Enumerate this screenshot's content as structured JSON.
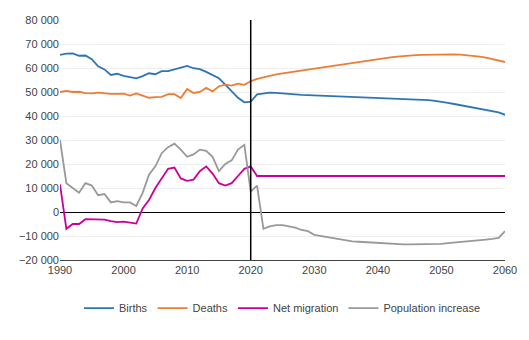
{
  "chart_data": {
    "type": "line",
    "x": [
      1990,
      1991,
      1992,
      1993,
      1994,
      1995,
      1996,
      1997,
      1998,
      1999,
      2000,
      2001,
      2002,
      2003,
      2004,
      2005,
      2006,
      2007,
      2008,
      2009,
      2010,
      2011,
      2012,
      2013,
      2014,
      2015,
      2016,
      2017,
      2018,
      2019,
      2020,
      2021,
      2022,
      2023,
      2024,
      2025,
      2026,
      2027,
      2028,
      2029,
      2030,
      2031,
      2032,
      2033,
      2034,
      2035,
      2036,
      2037,
      2038,
      2039,
      2040,
      2041,
      2042,
      2043,
      2044,
      2045,
      2046,
      2047,
      2048,
      2049,
      2050,
      2051,
      2052,
      2053,
      2054,
      2055,
      2056,
      2057,
      2058,
      2059,
      2060
    ],
    "series": [
      {
        "name": "Births",
        "color": "#2E75B6",
        "values": [
          65500,
          66000,
          66100,
          65100,
          65200,
          63700,
          60700,
          59400,
          57100,
          57600,
          56700,
          56200,
          55700,
          56600,
          57800,
          57400,
          58700,
          58700,
          59500,
          60400,
          60900,
          59900,
          59500,
          58400,
          57200,
          55700,
          53100,
          50300,
          47600,
          45700,
          46000,
          49000,
          49500,
          49700,
          49600,
          49500,
          49200,
          49000,
          48800,
          48700,
          48600,
          48500,
          48400,
          48300,
          48300,
          48200,
          48100,
          48000,
          47900,
          47800,
          47700,
          47600,
          47500,
          47400,
          47300,
          47200,
          47000,
          46800,
          46600,
          46300,
          46000,
          45500,
          45000,
          44500,
          44000,
          43500,
          43000,
          42500,
          42000,
          41500,
          40500
        ]
      },
      {
        "name": "Deaths",
        "color": "#ED7D31",
        "values": [
          50000,
          50500,
          50000,
          50100,
          49500,
          49400,
          49700,
          49400,
          49200,
          49200,
          49300,
          48500,
          49400,
          48500,
          47600,
          47900,
          48000,
          49100,
          49100,
          47500,
          51300,
          49600,
          50000,
          51700,
          50200,
          52400,
          53100,
          52700,
          53500,
          53000,
          54500,
          55500,
          56200,
          56800,
          57300,
          57800,
          58200,
          58700,
          59100,
          59500,
          59900,
          60300,
          60700,
          61100,
          61500,
          61900,
          62300,
          62700,
          63100,
          63400,
          63700,
          64100,
          64400,
          64700,
          65000,
          65200,
          65400,
          65500,
          65600,
          65700,
          65700,
          65700,
          65700,
          65600,
          65400,
          65100,
          64700,
          64300,
          63800,
          63300,
          62500
        ]
      },
      {
        "name": "Net migration",
        "color": "#CC0099",
        "values": [
          11500,
          -7000,
          -5000,
          -5000,
          -3000,
          -3000,
          -3200,
          -3200,
          -3800,
          -4200,
          -4000,
          -4500,
          -4800,
          1500,
          5000,
          10000,
          14000,
          18000,
          18500,
          14000,
          13000,
          13500,
          17000,
          19000,
          16000,
          12000,
          11000,
          12000,
          15000,
          18000,
          19000,
          15000,
          15000,
          15000,
          15000,
          15000,
          15000,
          15000,
          15000,
          15000,
          15000,
          15000,
          15000,
          15000,
          15000,
          15000,
          15000,
          15000,
          15000,
          15000,
          15000,
          15000,
          15000,
          15000,
          15000,
          15000,
          15000,
          15000,
          15000,
          15000,
          15000,
          15000,
          15000,
          15000,
          15000,
          15000,
          15000,
          15000,
          15000,
          15000,
          15000
        ]
      },
      {
        "name": "Population increase",
        "color": "#999999",
        "values": [
          30000,
          12000,
          10000,
          8000,
          12000,
          11000,
          7000,
          7500,
          4000,
          4500,
          4000,
          4000,
          2500,
          8000,
          15500,
          19000,
          24500,
          27000,
          28500,
          26000,
          23000,
          24000,
          26000,
          25500,
          23000,
          17000,
          20000,
          21500,
          26000,
          28000,
          8500,
          11000,
          -7000,
          -6000,
          -5500,
          -5500,
          -6000,
          -6500,
          -7500,
          -8000,
          -9500,
          -10000,
          -10500,
          -11000,
          -11500,
          -12000,
          -12200,
          -12400,
          -12600,
          -12800,
          -13000,
          -13200,
          -13300,
          -13400,
          -13500,
          -13500,
          -13500,
          -13500,
          -13500,
          -13500,
          -13300,
          -13000,
          -12800,
          -12500,
          -12300,
          -12000,
          -11700,
          -11500,
          -11200,
          -10800,
          -8000
        ]
      }
    ],
    "vertical_line_x": 2020,
    "xlim": [
      1990,
      2060
    ],
    "xticks": [
      1990,
      2000,
      2010,
      2020,
      2030,
      2040,
      2050,
      2060
    ],
    "ylim": [
      -20000,
      80000
    ],
    "yticks": [
      {
        "value": -20000,
        "label": "−20 000"
      },
      {
        "value": -10000,
        "label": "−10 000"
      },
      0,
      {
        "value": 10000,
        "label": "10 000"
      },
      {
        "value": 20000,
        "label": "20 000"
      },
      {
        "value": 30000,
        "label": "30 000"
      },
      {
        "value": 40000,
        "label": "40 000"
      },
      {
        "value": 50000,
        "label": "50 000"
      },
      {
        "value": 60000,
        "label": "60 000"
      },
      {
        "value": 70000,
        "label": "70 000"
      },
      {
        "value": 80000,
        "label": "80 000"
      }
    ],
    "grid": true,
    "legend": "bottom"
  }
}
